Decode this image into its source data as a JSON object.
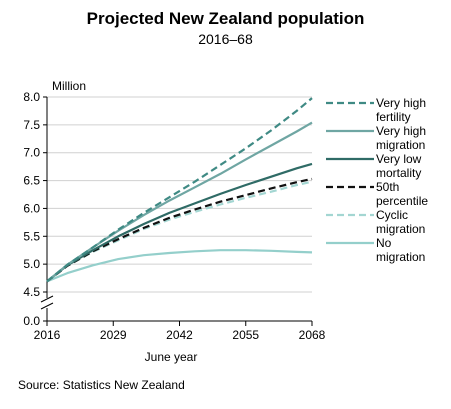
{
  "chart_data": {
    "type": "line",
    "title": "Projected New Zealand population",
    "subtitle": "2016–68",
    "ylabel": "Million",
    "xlabel": "June year",
    "ylim": [
      4.5,
      8.0
    ],
    "y_axis_break": true,
    "y_ticks": [
      "0.0",
      "4.5",
      "5.0",
      "5.5",
      "6.0",
      "6.5",
      "7.0",
      "7.5",
      "8.0"
    ],
    "x_ticks": [
      "2016",
      "2029",
      "2042",
      "2055",
      "2068"
    ],
    "xlim": [
      2016,
      2068
    ],
    "grid": true,
    "legend_position": "right",
    "source": "Source: Statistics New Zealand",
    "series": [
      {
        "name_lines": [
          "Very high",
          "fertility"
        ],
        "color": "#3f8a84",
        "style": "dashed",
        "x": [
          2016,
          2020,
          2025,
          2030,
          2035,
          2040,
          2045,
          2050,
          2055,
          2060,
          2065,
          2068
        ],
        "y": [
          4.69,
          4.99,
          5.3,
          5.62,
          5.92,
          6.2,
          6.48,
          6.78,
          7.08,
          7.4,
          7.75,
          7.98
        ]
      },
      {
        "name_lines": [
          "Very high",
          "migration"
        ],
        "color": "#6fa6a3",
        "style": "solid",
        "x": [
          2016,
          2020,
          2025,
          2030,
          2035,
          2040,
          2045,
          2050,
          2055,
          2060,
          2065,
          2068
        ],
        "y": [
          4.69,
          4.99,
          5.3,
          5.6,
          5.88,
          6.14,
          6.38,
          6.62,
          6.88,
          7.13,
          7.38,
          7.54
        ]
      },
      {
        "name_lines": [
          "Very low",
          "mortality"
        ],
        "color": "#2f6b66",
        "style": "solid",
        "x": [
          2016,
          2020,
          2025,
          2030,
          2035,
          2040,
          2045,
          2050,
          2055,
          2060,
          2065,
          2068
        ],
        "y": [
          4.69,
          4.98,
          5.25,
          5.5,
          5.72,
          5.92,
          6.09,
          6.26,
          6.42,
          6.57,
          6.72,
          6.8
        ]
      },
      {
        "name_lines": [
          "50th",
          "percentile"
        ],
        "color": "#111111",
        "style": "dashed",
        "x": [
          2016,
          2020,
          2025,
          2030,
          2035,
          2040,
          2045,
          2050,
          2055,
          2060,
          2065,
          2068
        ],
        "y": [
          4.69,
          4.97,
          5.23,
          5.45,
          5.65,
          5.83,
          5.98,
          6.12,
          6.24,
          6.36,
          6.47,
          6.53
        ]
      },
      {
        "name_lines": [
          "Cyclic",
          "migration"
        ],
        "color": "#a3d6d2",
        "style": "dashed",
        "x": [
          2016,
          2020,
          2025,
          2030,
          2035,
          2040,
          2045,
          2050,
          2055,
          2060,
          2065,
          2068
        ],
        "y": [
          4.69,
          4.97,
          5.22,
          5.43,
          5.63,
          5.8,
          5.94,
          6.07,
          6.19,
          6.3,
          6.42,
          6.48
        ]
      },
      {
        "name_lines": [
          "No",
          "migration"
        ],
        "color": "#94cfcb",
        "style": "solid",
        "x": [
          2016,
          2020,
          2025,
          2030,
          2035,
          2040,
          2045,
          2050,
          2055,
          2060,
          2065,
          2068
        ],
        "y": [
          4.69,
          4.84,
          4.98,
          5.09,
          5.16,
          5.2,
          5.23,
          5.25,
          5.25,
          5.24,
          5.22,
          5.21
        ]
      }
    ]
  }
}
